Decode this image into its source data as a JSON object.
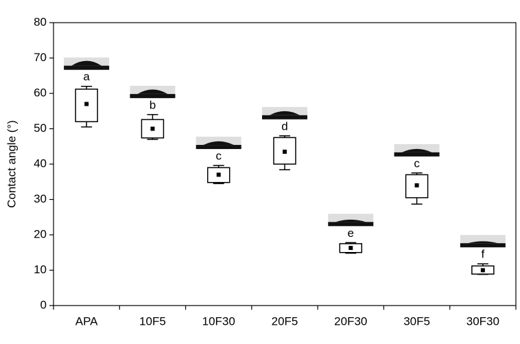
{
  "chart_data": {
    "type": "box",
    "y_label": "Contact angle (°)",
    "categories": [
      "APA",
      "10F5",
      "10F30",
      "20F5",
      "20F30",
      "30F5",
      "30F30"
    ],
    "boxes": [
      {
        "whislo": 50.5,
        "q1": 52,
        "mean": 57,
        "q3": 61.2,
        "whishi": 62,
        "label": "a"
      },
      {
        "whislo": 47,
        "q1": 47.4,
        "mean": 50,
        "q3": 52.6,
        "whishi": 54,
        "label": "b"
      },
      {
        "whislo": 34.5,
        "q1": 34.8,
        "mean": 37,
        "q3": 39,
        "whishi": 39.6,
        "label": "c"
      },
      {
        "whislo": 38.4,
        "q1": 40,
        "mean": 43.5,
        "q3": 47.5,
        "whishi": 48,
        "label": "d"
      },
      {
        "whislo": 14.8,
        "q1": 15,
        "mean": 16.3,
        "q3": 17.5,
        "whishi": 17.8,
        "label": "e"
      },
      {
        "whislo": 28.7,
        "q1": 30.5,
        "mean": 34,
        "q3": 37,
        "whishi": 37.5,
        "label": "c"
      },
      {
        "whislo": 8.8,
        "q1": 8.9,
        "mean": 10,
        "q3": 11.2,
        "whishi": 11.8,
        "label": "f"
      }
    ],
    "color": "#000000",
    "ylim": [
      0,
      80
    ],
    "yticks": [
      0,
      10,
      20,
      30,
      40,
      50,
      60,
      70,
      80
    ]
  }
}
